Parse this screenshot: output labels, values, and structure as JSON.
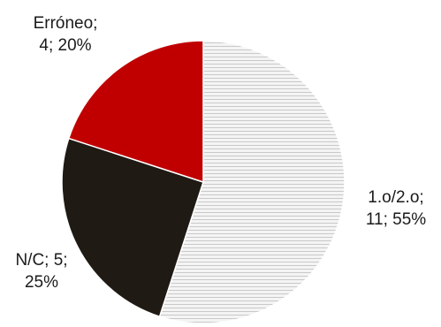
{
  "chart_data": {
    "type": "pie",
    "title": "",
    "slices": [
      {
        "label": "1.o/2.o",
        "value": 11,
        "percent": "55%",
        "color": "#f2f2f2",
        "pattern": "horizontal-lines",
        "line1": "1.o/2.o;",
        "line2": "11; 55%"
      },
      {
        "label": "N/C",
        "value": 5,
        "percent": "25%",
        "color": "#1f1a14",
        "line1": "N/C; 5;",
        "line2": "25%"
      },
      {
        "label": "Erróneo",
        "value": 4,
        "percent": "20%",
        "color": "#c00000",
        "line1": "Erróneo;",
        "line2": "4; 20%"
      }
    ],
    "start_angle_deg": 0,
    "direction": "clockwise",
    "legend": "none"
  }
}
